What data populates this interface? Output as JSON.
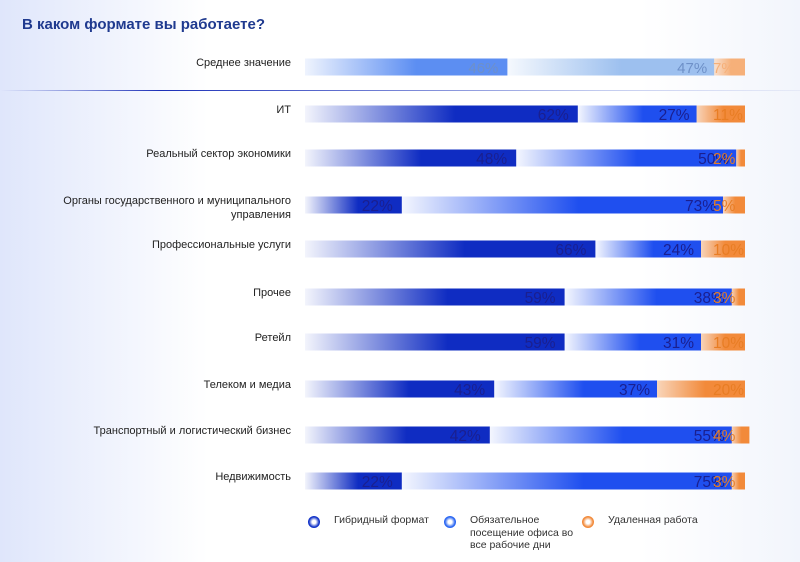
{
  "title": "В каком формате вы работаете?",
  "colors": {
    "hybrid": "#0f2cc2",
    "office": "#1f4fef",
    "remote": "#f28a3a",
    "average_hybrid": "#5c8ef2",
    "average_office": "#9dc0ef",
    "average_remote": "#f6b079",
    "text_dark": "#1a1f8f",
    "text_average": "#6e90c8",
    "text_remote": "#e87d24",
    "legend_hybrid": "#1233c8",
    "legend_office": "#2a66f2",
    "legend_remote": "#f28a3a"
  },
  "legend": {
    "hybrid": "Гибридный формат",
    "office": "Обязательное посещение офиса во все рабочие дни",
    "remote": "Удаленная работа"
  },
  "chart_data": {
    "type": "bar",
    "orientation": "horizontal",
    "stacked": true,
    "title": "В каком формате вы работаете?",
    "series_names": [
      "Гибридный формат",
      "Обязательное посещение офиса во все рабочие дни",
      "Удаленная работа"
    ],
    "rows": [
      {
        "label": "Среднее значение",
        "hybrid": 46,
        "office": 47,
        "remote": 7,
        "is_average": true
      },
      {
        "label": "ИТ",
        "hybrid": 62,
        "office": 27,
        "remote": 11
      },
      {
        "label": "Реальный сектор экономики",
        "hybrid": 48,
        "office": 50,
        "remote": 2
      },
      {
        "label": "Органы государственного и муниципального управления",
        "hybrid": 22,
        "office": 73,
        "remote": 5
      },
      {
        "label": "Профессиональные услуги",
        "hybrid": 66,
        "office": 24,
        "remote": 10
      },
      {
        "label": "Прочее",
        "hybrid": 59,
        "office": 38,
        "remote": 3
      },
      {
        "label": "Ретейл",
        "hybrid": 59,
        "office": 31,
        "remote": 10
      },
      {
        "label": "Телеком и медиа",
        "hybrid": 43,
        "office": 37,
        "remote": 20
      },
      {
        "label": "Транспортный и логистический бизнес",
        "hybrid": 42,
        "office": 55,
        "remote": 4
      },
      {
        "label": "Недвижимость",
        "hybrid": 22,
        "office": 75,
        "remote": 3
      }
    ],
    "value_suffix": "%",
    "legend_position": "bottom"
  }
}
